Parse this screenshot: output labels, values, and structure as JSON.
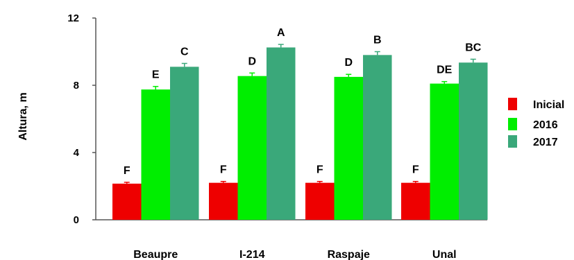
{
  "chart_data": {
    "type": "bar",
    "ylabel": "Altura, m",
    "ylim": [
      0,
      12
    ],
    "yticks": [
      0,
      4,
      8,
      12
    ],
    "categories": [
      "Beaupre",
      "I-214",
      "Raspaje",
      "Unal"
    ],
    "series": [
      {
        "name": "Inicial",
        "color": "#ee0000",
        "values": [
          2.15,
          2.2,
          2.2,
          2.2
        ],
        "errors": [
          0.08,
          0.08,
          0.08,
          0.08
        ],
        "labels": [
          "F",
          "F",
          "F",
          "F"
        ]
      },
      {
        "name": "2016",
        "color": "#00ee00",
        "values": [
          7.75,
          8.55,
          8.5,
          8.1
        ],
        "errors": [
          0.18,
          0.18,
          0.15,
          0.12
        ],
        "labels": [
          "E",
          "D",
          "D",
          "DE"
        ]
      },
      {
        "name": "2017",
        "color": "#3aa87a",
        "values": [
          9.1,
          10.25,
          9.8,
          9.35
        ],
        "errors": [
          0.2,
          0.18,
          0.2,
          0.2
        ],
        "labels": [
          "C",
          "A",
          "B",
          "BC"
        ]
      }
    ],
    "legend_position": "right",
    "grid": false
  }
}
